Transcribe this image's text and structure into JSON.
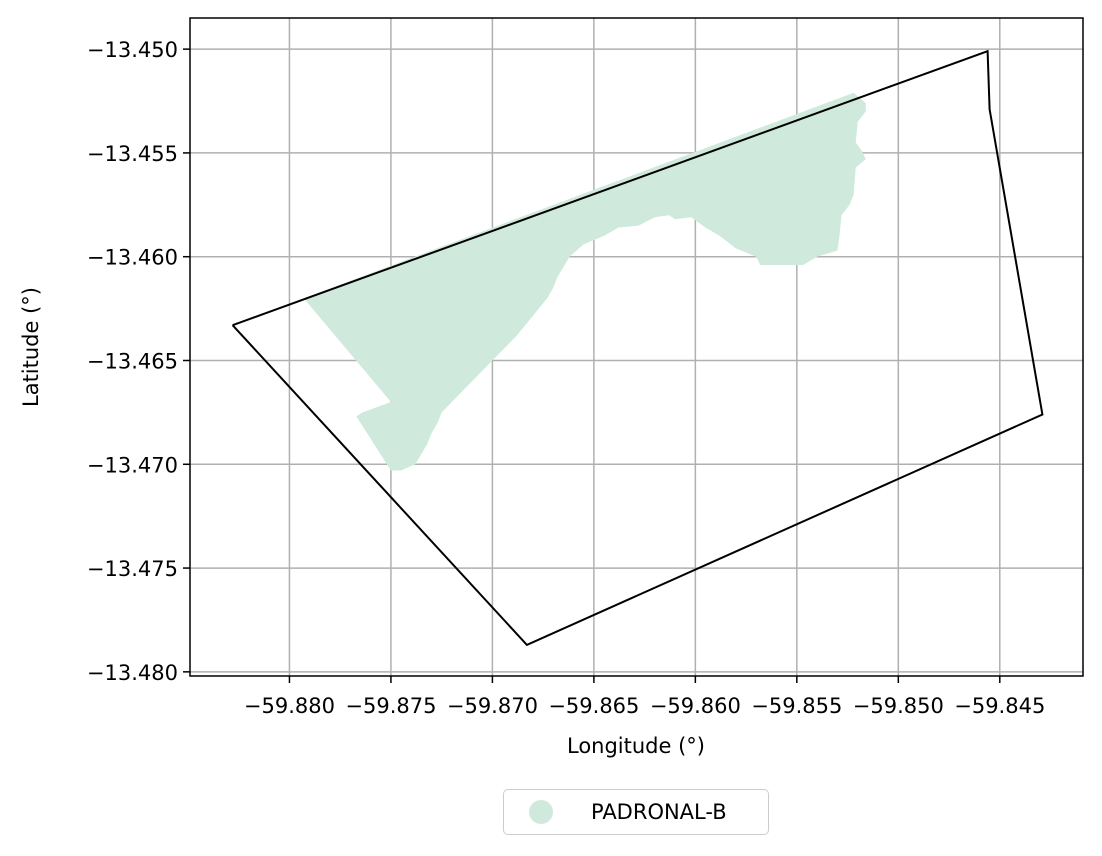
{
  "chart_data": {
    "type": "map",
    "xlabel": "Longitude (°)",
    "ylabel": "Latitude (°)",
    "xlim": [
      -59.8849,
      -59.8409
    ],
    "ylim": [
      -13.4802,
      -13.4485
    ],
    "xticks": [
      -59.88,
      -59.875,
      -59.87,
      -59.865,
      -59.86,
      -59.855,
      -59.85,
      -59.845
    ],
    "xtick_labels": [
      "−59.880",
      "−59.875",
      "−59.870",
      "−59.865",
      "−59.860",
      "−59.855",
      "−59.850",
      "−59.845"
    ],
    "yticks": [
      -13.45,
      -13.455,
      -13.46,
      -13.465,
      -13.47,
      -13.475,
      -13.48
    ],
    "ytick_labels": [
      "−13.450",
      "−13.455",
      "−13.460",
      "−13.465",
      "−13.470",
      "−13.475",
      "−13.480"
    ],
    "grid": true,
    "legend_position": "bottom-center (below plot)",
    "boundary": {
      "color": "#000000",
      "coords": [
        [
          -59.8828,
          -13.4633
        ],
        [
          -59.8456,
          -13.4501
        ],
        [
          -59.8455,
          -13.4529
        ],
        [
          -59.8429,
          -13.4676
        ],
        [
          -59.8683,
          -13.4787
        ],
        [
          -59.8828,
          -13.4633
        ]
      ]
    },
    "layers": [
      {
        "name": "PADRONAL-B",
        "color": "#cfeadd",
        "coords": [
          [
            -59.8793,
            -13.462
          ],
          [
            -59.8522,
            -13.4521
          ],
          [
            -59.8516,
            -13.4526
          ],
          [
            -59.8516,
            -13.453
          ],
          [
            -59.852,
            -13.4535
          ],
          [
            -59.8521,
            -13.4545
          ],
          [
            -59.8518,
            -13.4549
          ],
          [
            -59.8516,
            -13.4553
          ],
          [
            -59.8521,
            -13.4557
          ],
          [
            -59.8522,
            -13.457
          ],
          [
            -59.8524,
            -13.4575
          ],
          [
            -59.8528,
            -13.458
          ],
          [
            -59.8529,
            -13.459
          ],
          [
            -59.853,
            -13.4597
          ],
          [
            -59.854,
            -13.46
          ],
          [
            -59.8547,
            -13.4604
          ],
          [
            -59.8568,
            -13.4604
          ],
          [
            -59.857,
            -13.46
          ],
          [
            -59.858,
            -13.4596
          ],
          [
            -59.8588,
            -13.459
          ],
          [
            -59.8595,
            -13.4586
          ],
          [
            -59.8602,
            -13.4581
          ],
          [
            -59.861,
            -13.4582
          ],
          [
            -59.8613,
            -13.458
          ],
          [
            -59.862,
            -13.4581
          ],
          [
            -59.8628,
            -13.4585
          ],
          [
            -59.8638,
            -13.4586
          ],
          [
            -59.8645,
            -13.459
          ],
          [
            -59.8655,
            -13.4594
          ],
          [
            -59.8662,
            -13.46
          ],
          [
            -59.8668,
            -13.461
          ],
          [
            -59.867,
            -13.4615
          ],
          [
            -59.8673,
            -13.462
          ],
          [
            -59.8688,
            -13.4638
          ],
          [
            -59.871,
            -13.466
          ],
          [
            -59.8725,
            -13.4675
          ],
          [
            -59.8727,
            -13.468
          ],
          [
            -59.873,
            -13.4685
          ],
          [
            -59.8732,
            -13.469
          ],
          [
            -59.8735,
            -13.4695
          ],
          [
            -59.8738,
            -13.47
          ],
          [
            -59.8745,
            -13.4703
          ],
          [
            -59.875,
            -13.4703
          ],
          [
            -59.8767,
            -13.4677
          ],
          [
            -59.8764,
            -13.4675
          ],
          [
            -59.875,
            -13.467
          ],
          [
            -59.8793,
            -13.462
          ]
        ]
      }
    ]
  },
  "legend": {
    "items": [
      {
        "label": "PADRONAL-B",
        "color": "#cfeadd"
      }
    ]
  }
}
